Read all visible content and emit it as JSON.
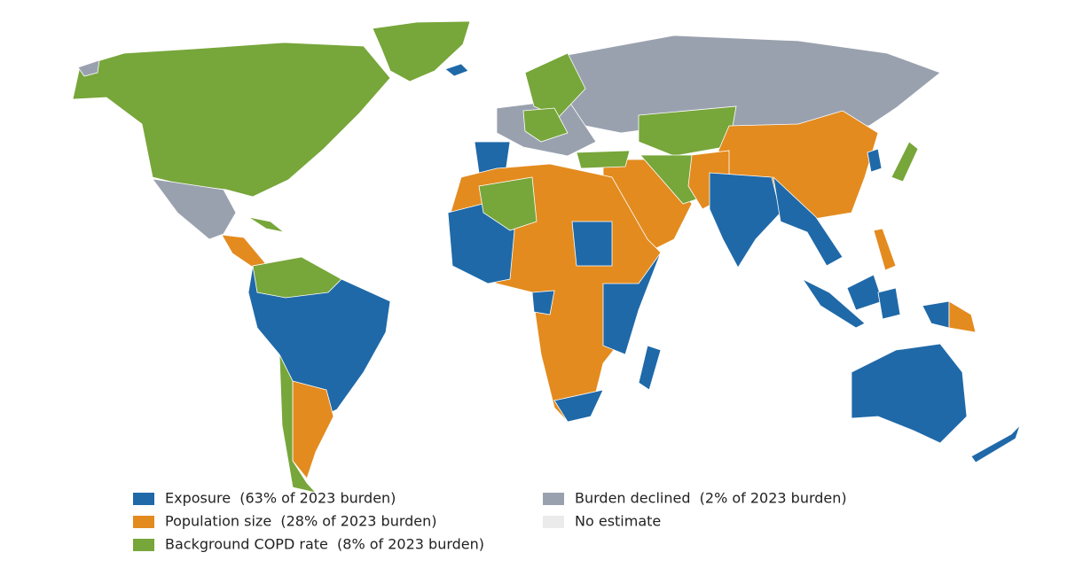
{
  "legend": {
    "items": [
      {
        "label": "Exposure  (63% of 2023 burden)",
        "color": "#1f69a8"
      },
      {
        "label": "Population size  (28% of 2023 burden)",
        "color": "#e38b1f"
      },
      {
        "label": "Background COPD rate  (8% of 2023 burden)",
        "color": "#77a63a"
      },
      {
        "label": "Burden declined  (2% of 2023 burden)",
        "color": "#9aa1ae"
      },
      {
        "label": "No estimate",
        "color": "#ebebeb"
      }
    ]
  }
}
